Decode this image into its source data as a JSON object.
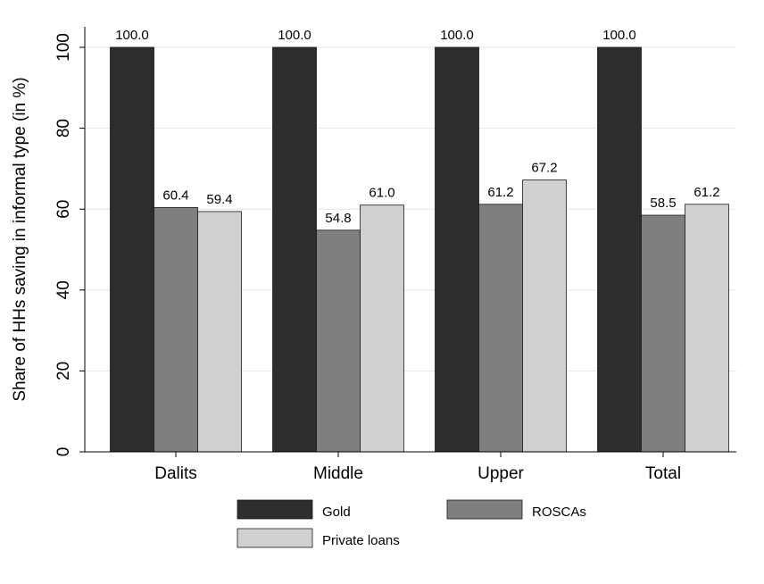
{
  "chart_data": {
    "type": "bar",
    "title": "",
    "xlabel": "",
    "ylabel": "Share of HHs saving in informal type (in %)",
    "ylim": [
      0,
      100
    ],
    "yticks": [
      0,
      20,
      40,
      60,
      80,
      100
    ],
    "grid": true,
    "legend_position": "bottom",
    "categories": [
      "Dalits",
      "Middle",
      "Upper",
      "Total"
    ],
    "series": [
      {
        "name": "Gold",
        "color": "#2d2d2d",
        "values": [
          100.0,
          100.0,
          100.0,
          100.0
        ]
      },
      {
        "name": "ROSCAs",
        "color": "#7f7f7f",
        "values": [
          60.4,
          54.8,
          61.2,
          58.5
        ]
      },
      {
        "name": "Private loans",
        "color": "#d0d0d0",
        "values": [
          59.4,
          61.0,
          67.2,
          61.2
        ]
      }
    ],
    "value_label_format": "0.0"
  }
}
